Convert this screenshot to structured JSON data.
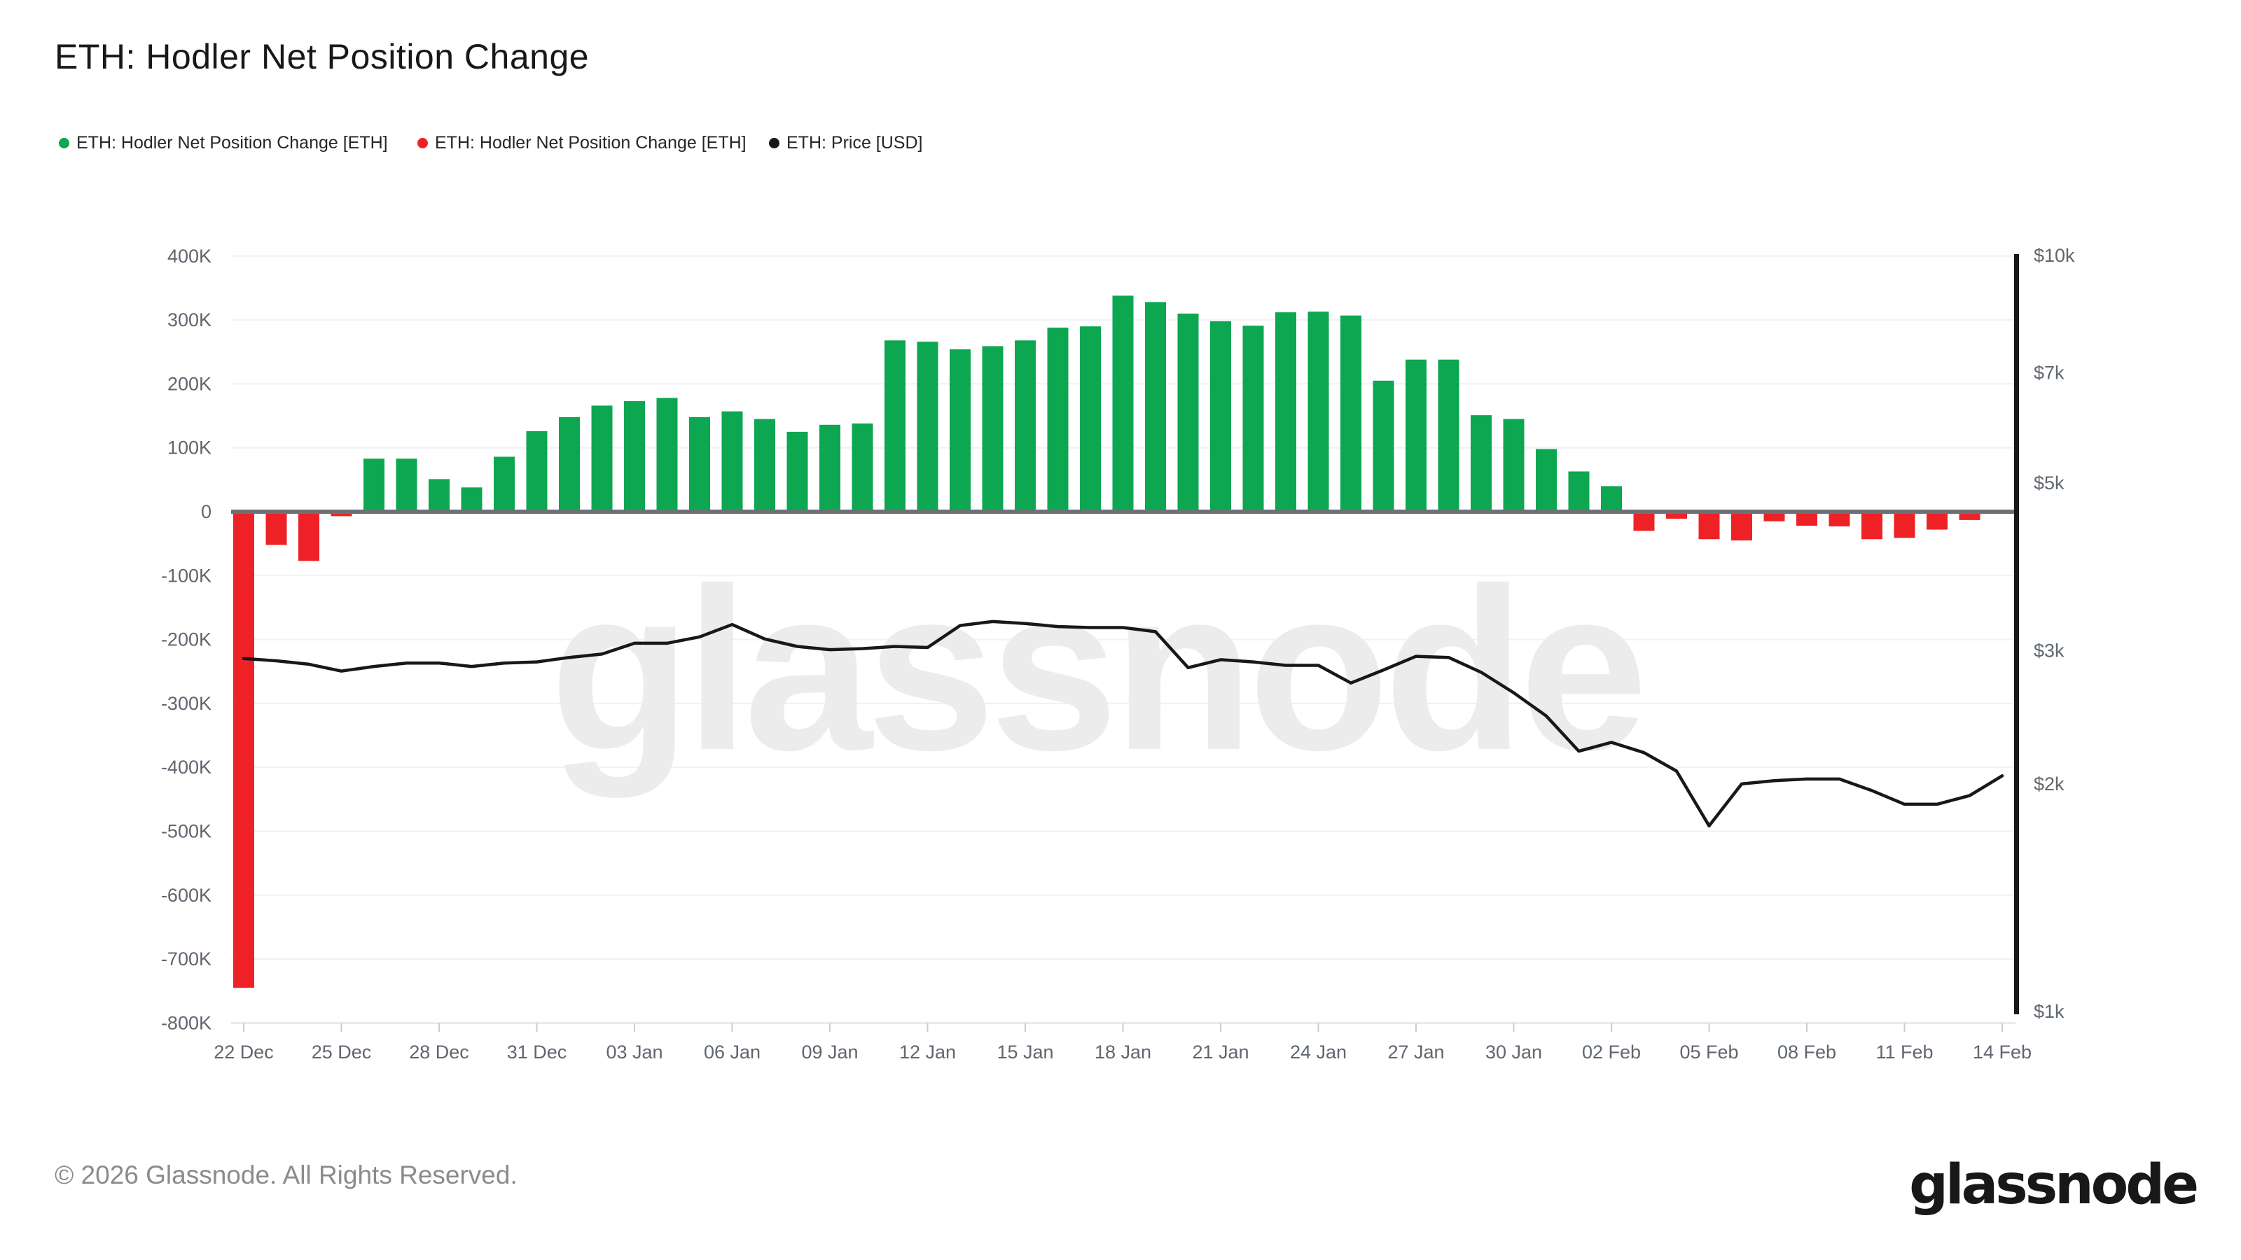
{
  "page": {
    "title": "ETH: Hodler Net Position Change"
  },
  "legend": {
    "items": [
      {
        "label": "ETH: Hodler Net Position Change [ETH]",
        "color": "#0ca750"
      },
      {
        "label": "ETH: Hodler Net Position Change [ETH]",
        "color": "#ee2226"
      },
      {
        "label": "ETH: Price [USD]",
        "color": "#17181a"
      }
    ]
  },
  "watermark": "glassnode",
  "footer": {
    "copyright": "© 2026 Glassnode. All Rights Reserved.",
    "logo": "glassnode"
  },
  "colors": {
    "bar_positive": "#0ca750",
    "bar_negative": "#ee2226",
    "price_line": "#17181a",
    "gridline": "#eef1f5",
    "zero_line": "#6d7177",
    "axis_labels": "#60666f",
    "bottom_axis": "#dcdfe4",
    "bottom_tick": "#c8cdd4",
    "right_axis_bar": "#17181a",
    "watermark": "#ececec"
  },
  "chart_data": {
    "type": "bar",
    "title": "ETH: Hodler Net Position Change",
    "xlabel": "",
    "ylabel": "",
    "categories": [
      "22 Dec",
      "23 Dec",
      "24 Dec",
      "25 Dec",
      "26 Dec",
      "27 Dec",
      "28 Dec",
      "29 Dec",
      "30 Dec",
      "31 Dec",
      "01 Jan",
      "02 Jan",
      "03 Jan",
      "04 Jan",
      "05 Jan",
      "06 Jan",
      "07 Jan",
      "08 Jan",
      "09 Jan",
      "10 Jan",
      "11 Jan",
      "12 Jan",
      "13 Jan",
      "14 Jan",
      "15 Jan",
      "16 Jan",
      "17 Jan",
      "18 Jan",
      "19 Jan",
      "20 Jan",
      "21 Jan",
      "22 Jan",
      "23 Jan",
      "24 Jan",
      "25 Jan",
      "26 Jan",
      "27 Jan",
      "28 Jan",
      "29 Jan",
      "30 Jan",
      "31 Jan",
      "01 Feb",
      "02 Feb",
      "03 Feb",
      "04 Feb",
      "05 Feb",
      "06 Feb",
      "07 Feb",
      "08 Feb",
      "09 Feb",
      "10 Feb",
      "11 Feb",
      "12 Feb",
      "13 Feb",
      "14 Feb"
    ],
    "series": [
      {
        "name": "ETH: Hodler Net Position Change [ETH]",
        "type": "bar",
        "axis": "left",
        "unit": "ETH",
        "values": [
          -745000,
          -52000,
          -77000,
          -7000,
          83000,
          83000,
          51000,
          38000,
          86000,
          126000,
          148000,
          166000,
          173000,
          178000,
          148000,
          157000,
          145000,
          125000,
          136000,
          138000,
          268000,
          266000,
          254000,
          259000,
          268000,
          288000,
          290000,
          338000,
          328000,
          310000,
          298000,
          291000,
          312000,
          313000,
          307000,
          205000,
          238000,
          238000,
          151000,
          145000,
          98000,
          63000,
          40000,
          -30000,
          -11000,
          -43000,
          -45000,
          -15000,
          -22000,
          -23000,
          -43000,
          -41000,
          -28000,
          -13000,
          null
        ]
      },
      {
        "name": "ETH: Price [USD]",
        "type": "line",
        "axis": "right",
        "unit": "USD",
        "values": [
          2930,
          2910,
          2880,
          2820,
          2860,
          2890,
          2890,
          2860,
          2890,
          2900,
          2940,
          2970,
          3070,
          3070,
          3130,
          3250,
          3110,
          3040,
          3010,
          3020,
          3040,
          3030,
          3240,
          3280,
          3260,
          3230,
          3220,
          3220,
          3180,
          2850,
          2920,
          2900,
          2870,
          2870,
          2720,
          2830,
          2950,
          2940,
          2810,
          2640,
          2460,
          2210,
          2270,
          2200,
          2080,
          1760,
          2000,
          2020,
          2030,
          2030,
          1960,
          1880,
          1880,
          1930,
          2050
        ]
      }
    ],
    "left_axis": {
      "range": [
        -800000,
        400000
      ],
      "ticks": [
        {
          "label": "400K",
          "value": 400000
        },
        {
          "label": "300K",
          "value": 300000
        },
        {
          "label": "200K",
          "value": 200000
        },
        {
          "label": "100K",
          "value": 100000
        },
        {
          "label": "0",
          "value": 0
        },
        {
          "label": "-100K",
          "value": -100000
        },
        {
          "label": "-200K",
          "value": -200000
        },
        {
          "label": "-300K",
          "value": -300000
        },
        {
          "label": "-400K",
          "value": -400000
        },
        {
          "label": "-500K",
          "value": -500000
        },
        {
          "label": "-600K",
          "value": -600000
        },
        {
          "label": "-700K",
          "value": -700000
        },
        {
          "label": "-800K",
          "value": -800000
        }
      ]
    },
    "right_axis": {
      "scale": "log",
      "range": [
        1000,
        10000
      ],
      "ticks": [
        {
          "label": "$10k",
          "value": 10000
        },
        {
          "label": "$7k",
          "value": 7000
        },
        {
          "label": "$5k",
          "value": 5000
        },
        {
          "label": "$3k",
          "value": 3000
        },
        {
          "label": "$2k",
          "value": 2000
        },
        {
          "label": "$1k",
          "value": 1000
        }
      ]
    },
    "x_tick_labels": [
      "22 Dec",
      "25 Dec",
      "28 Dec",
      "31 Dec",
      "03 Jan",
      "06 Jan",
      "09 Jan",
      "12 Jan",
      "15 Jan",
      "18 Jan",
      "21 Jan",
      "24 Jan",
      "27 Jan",
      "30 Jan",
      "02 Feb",
      "05 Feb",
      "08 Feb",
      "11 Feb",
      "14 Feb"
    ],
    "x_tick_every": 3,
    "grid": "horizontal",
    "legend_position": "top-left"
  }
}
